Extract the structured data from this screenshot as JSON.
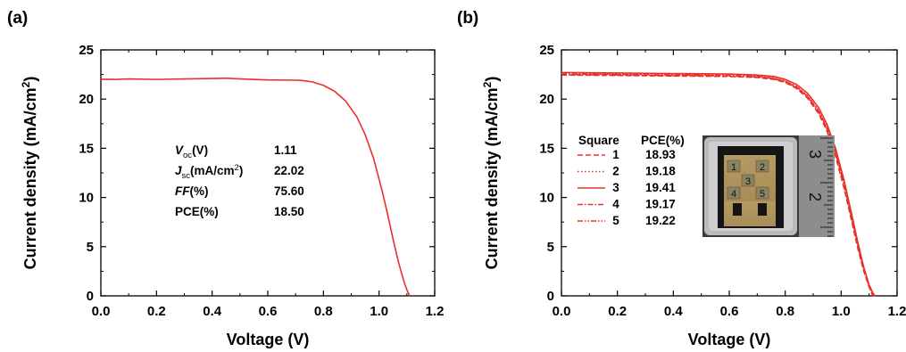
{
  "chart_data": [
    {
      "panel_label": "(a)",
      "type": "line",
      "xlabel": "Voltage (V)",
      "ylabel": "Current density (mA/cm",
      "ylabel_sup": "2",
      "ylabel_close": ")",
      "xlim": [
        0,
        1.2
      ],
      "ylim": [
        0,
        25
      ],
      "xticks": [
        "0.0",
        "0.2",
        "0.4",
        "0.6",
        "0.8",
        "1.0",
        "1.2"
      ],
      "yticks": [
        "0",
        "5",
        "10",
        "15",
        "20",
        "25"
      ],
      "color": "#e8302a",
      "series": [
        {
          "x": [
            0.0,
            0.05,
            0.1,
            0.2,
            0.3,
            0.4,
            0.45,
            0.5,
            0.6,
            0.7,
            0.72,
            0.76,
            0.8,
            0.84,
            0.88,
            0.92,
            0.95,
            0.98,
            1.01,
            1.03,
            1.05,
            1.07,
            1.09,
            1.1,
            1.11
          ],
          "y": [
            22.02,
            22.0,
            22.05,
            22.0,
            22.05,
            22.1,
            22.12,
            22.05,
            21.95,
            21.92,
            21.9,
            21.75,
            21.4,
            20.8,
            19.8,
            18.2,
            16.4,
            14.0,
            10.8,
            8.4,
            5.8,
            3.4,
            1.4,
            0.6,
            0.0
          ]
        }
      ],
      "table": {
        "rows": [
          {
            "label_main": "V",
            "label_sub": "oc",
            "label_rest": "(V)",
            "value": "1.11"
          },
          {
            "label_main": "J",
            "label_sub": "sc",
            "label_rest": "(mA/cm",
            "label_sup": "2",
            "label_close": ")",
            "value": "22.02"
          },
          {
            "label_main": "FF",
            "label_rest": "(%)",
            "value": "75.60"
          },
          {
            "label_main": "PCE(%)",
            "value": "18.50"
          }
        ]
      }
    },
    {
      "panel_label": "(b)",
      "type": "line",
      "xlabel": "Voltage (V)",
      "ylabel": "Current density (mA/cm",
      "ylabel_sup": "2",
      "ylabel_close": ")",
      "xlim": [
        0,
        1.2
      ],
      "ylim": [
        0,
        25
      ],
      "xticks": [
        "0.0",
        "0.2",
        "0.4",
        "0.6",
        "0.8",
        "1.0",
        "1.2"
      ],
      "yticks": [
        "0",
        "5",
        "10",
        "15",
        "20",
        "25"
      ],
      "color": "#e8302a",
      "legend": {
        "header_square": "Square",
        "header_pce": "PCE(%)",
        "entries": [
          {
            "square": "1",
            "pce": "18.93",
            "dash": "6,3"
          },
          {
            "square": "2",
            "pce": "19.18",
            "dash": "1.5,2.5"
          },
          {
            "square": "3",
            "pce": "19.41",
            "dash": ""
          },
          {
            "square": "4",
            "pce": "19.17",
            "dash": "6,2,1.5,2"
          },
          {
            "square": "5",
            "pce": "19.22",
            "dash": "6,2,1.5,2,1.5,2"
          }
        ]
      },
      "series": [
        {
          "name": "1",
          "dash": "6,3",
          "x": [
            0.0,
            0.2,
            0.4,
            0.6,
            0.7,
            0.76,
            0.8,
            0.84,
            0.88,
            0.92,
            0.95,
            0.98,
            1.01,
            1.04,
            1.06,
            1.08,
            1.1,
            1.11,
            1.115
          ],
          "y": [
            22.45,
            22.4,
            22.35,
            22.3,
            22.2,
            22.0,
            21.7,
            21.1,
            20.1,
            18.5,
            16.7,
            14.2,
            11.0,
            7.3,
            4.8,
            2.6,
            0.9,
            0.2,
            0.0
          ]
        },
        {
          "name": "2",
          "dash": "1.5,2.5",
          "x": [
            0.0,
            0.2,
            0.4,
            0.6,
            0.7,
            0.76,
            0.8,
            0.84,
            0.88,
            0.92,
            0.95,
            0.98,
            1.01,
            1.04,
            1.06,
            1.08,
            1.1,
            1.11,
            1.118
          ],
          "y": [
            22.6,
            22.55,
            22.5,
            22.45,
            22.35,
            22.15,
            21.85,
            21.3,
            20.35,
            18.8,
            17.0,
            14.6,
            11.4,
            7.6,
            5.1,
            2.8,
            1.0,
            0.3,
            0.0
          ]
        },
        {
          "name": "3",
          "dash": "",
          "x": [
            0.0,
            0.2,
            0.4,
            0.6,
            0.7,
            0.76,
            0.8,
            0.84,
            0.88,
            0.92,
            0.95,
            0.98,
            1.01,
            1.04,
            1.06,
            1.08,
            1.1,
            1.115,
            1.12
          ],
          "y": [
            22.7,
            22.65,
            22.6,
            22.55,
            22.45,
            22.3,
            22.0,
            21.5,
            20.6,
            19.1,
            17.4,
            15.0,
            11.8,
            8.0,
            5.4,
            3.0,
            1.1,
            0.2,
            0.0
          ]
        },
        {
          "name": "4",
          "dash": "6,2,1.5,2",
          "x": [
            0.0,
            0.2,
            0.4,
            0.6,
            0.7,
            0.76,
            0.8,
            0.84,
            0.88,
            0.92,
            0.95,
            0.98,
            1.01,
            1.04,
            1.06,
            1.08,
            1.1,
            1.115,
            1.122
          ],
          "y": [
            22.55,
            22.5,
            22.45,
            22.4,
            22.3,
            22.1,
            21.8,
            21.25,
            20.3,
            18.75,
            17.0,
            14.6,
            11.4,
            7.7,
            5.2,
            2.9,
            1.1,
            0.2,
            0.0
          ]
        },
        {
          "name": "5",
          "dash": "6,2,1.5,2,1.5,2",
          "x": [
            0.0,
            0.2,
            0.4,
            0.6,
            0.7,
            0.76,
            0.8,
            0.84,
            0.88,
            0.92,
            0.95,
            0.98,
            1.01,
            1.04,
            1.06,
            1.08,
            1.1,
            1.115,
            1.12
          ],
          "y": [
            22.5,
            22.45,
            22.4,
            22.35,
            22.25,
            22.05,
            21.75,
            21.2,
            20.25,
            18.7,
            16.95,
            14.5,
            11.3,
            7.6,
            5.1,
            2.8,
            1.0,
            0.2,
            0.0
          ]
        }
      ],
      "inset_photo": {
        "labels": [
          "1",
          "2",
          "3",
          "4",
          "5"
        ],
        "ruler_labels": [
          "3",
          "2"
        ]
      }
    }
  ]
}
